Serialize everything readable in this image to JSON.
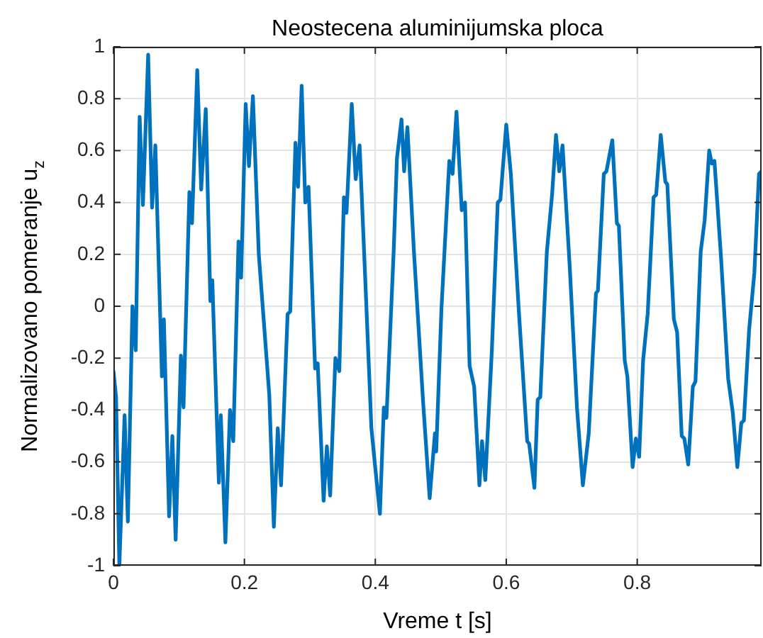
{
  "chart_data": {
    "type": "line",
    "title": "Neostecena aluminijumska ploca",
    "xlabel": "Vreme t [s]",
    "ylabel": "Normalizovano pomeranje u$_{z}$",
    "xlim": [
      0,
      0.99
    ],
    "xticks": [
      0,
      0.2,
      0.4,
      0.6,
      0.8
    ],
    "ylim": [
      -1,
      1
    ],
    "yticks": [
      -1,
      -0.8,
      -0.6,
      -0.4,
      -0.2,
      0,
      0.2,
      0.4,
      0.6,
      0.8,
      1
    ],
    "grid": true,
    "legend": false,
    "marker": "none",
    "line_style": "solid",
    "series": [
      {
        "color": "#0072bd",
        "x": [
          0,
          0.004,
          0.009,
          0.017,
          0.022,
          0.029,
          0.034,
          0.04,
          0.045,
          0.053,
          0.059,
          0.064,
          0.074,
          0.077,
          0.085,
          0.09,
          0.095,
          0.103,
          0.107,
          0.116,
          0.12,
          0.128,
          0.134,
          0.141,
          0.148,
          0.151,
          0.161,
          0.164,
          0.171,
          0.178,
          0.183,
          0.191,
          0.195,
          0.202,
          0.207,
          0.213,
          0.222,
          0.238,
          0.245,
          0.251,
          0.256,
          0.266,
          0.27,
          0.278,
          0.282,
          0.2875,
          0.293,
          0.298,
          0.308,
          0.312,
          0.321,
          0.326,
          0.331,
          0.339,
          0.345,
          0.352,
          0.356,
          0.364,
          0.37,
          0.376,
          0.386,
          0.394,
          0.399,
          0.407,
          0.413,
          0.417,
          0.428,
          0.433,
          0.44,
          0.444,
          0.449,
          0.459,
          0.473,
          0.483,
          0.491,
          0.493,
          0.501,
          0.513,
          0.518,
          0.524,
          0.532,
          0.537,
          0.544,
          0.551,
          0.559,
          0.563,
          0.568,
          0.578,
          0.587,
          0.591,
          0.6,
          0.607,
          0.619,
          0.632,
          0.635,
          0.643,
          0.648,
          0.652,
          0.662,
          0.67,
          0.676,
          0.681,
          0.686,
          0.697,
          0.708,
          0.717,
          0.726,
          0.737,
          0.74,
          0.749,
          0.753,
          0.762,
          0.769,
          0.772,
          0.781,
          0.785,
          0.793,
          0.798,
          0.803,
          0.809,
          0.816,
          0.825,
          0.829,
          0.836,
          0.843,
          0.846,
          0.856,
          0.861,
          0.868,
          0.872,
          0.878,
          0.885,
          0.889,
          0.897,
          0.903,
          0.91,
          0.914,
          0.918,
          0.928,
          0.939,
          0.946,
          0.953,
          0.959,
          0.963,
          0.971,
          0.979,
          0.986,
          0.99
        ],
        "values": [
          -0.25,
          -0.35,
          -1.0,
          -0.42,
          -0.83,
          0.0,
          -0.17,
          0.73,
          0.39,
          0.97,
          0.38,
          0.62,
          -0.27,
          -0.05,
          -0.81,
          -0.5,
          -0.9,
          -0.19,
          -0.39,
          0.44,
          0.32,
          0.91,
          0.45,
          0.76,
          0.02,
          0.1,
          -0.68,
          -0.42,
          -0.91,
          -0.4,
          -0.52,
          0.25,
          0.11,
          0.78,
          0.54,
          0.81,
          0.2,
          -0.34,
          -0.85,
          -0.47,
          -0.69,
          -0.03,
          -0.02,
          0.63,
          0.46,
          0.85,
          0.4,
          0.46,
          -0.24,
          -0.22,
          -0.75,
          -0.54,
          -0.73,
          -0.2,
          -0.25,
          0.42,
          0.36,
          0.78,
          0.49,
          0.62,
          0.02,
          -0.47,
          -0.6,
          -0.8,
          -0.39,
          -0.43,
          0.21,
          0.57,
          0.72,
          0.52,
          0.69,
          0.21,
          -0.37,
          -0.74,
          -0.49,
          -0.56,
          -0.01,
          0.56,
          0.51,
          0.75,
          0.37,
          0.4,
          -0.23,
          -0.31,
          -0.69,
          -0.52,
          -0.67,
          -0.17,
          0.4,
          0.41,
          0.7,
          0.51,
          -0.01,
          -0.52,
          -0.53,
          -0.7,
          -0.36,
          -0.35,
          0.21,
          0.43,
          0.66,
          0.52,
          0.62,
          0.15,
          -0.39,
          -0.69,
          -0.49,
          0.05,
          0.06,
          0.51,
          0.52,
          0.64,
          0.32,
          0.31,
          -0.21,
          -0.27,
          -0.62,
          -0.51,
          -0.58,
          -0.21,
          -0.03,
          0.42,
          0.43,
          0.66,
          0.48,
          0.47,
          -0.05,
          -0.1,
          -0.5,
          -0.51,
          -0.61,
          -0.31,
          -0.29,
          0.21,
          0.33,
          0.6,
          0.55,
          0.56,
          0.19,
          -0.28,
          -0.41,
          -0.62,
          -0.45,
          -0.44,
          -0.09,
          0.13,
          0.51,
          0.52
        ]
      }
    ]
  }
}
